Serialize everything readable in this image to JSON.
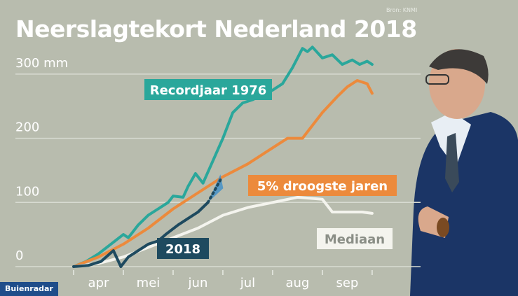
{
  "title": "Neerslagtekort Nederland 2018",
  "source": "Bron: KNMI",
  "brand": "Buienradar",
  "colors": {
    "background": "#b8bcae",
    "record1976": "#2aa79b",
    "droogste5": "#ec8a3c",
    "mediaan": "#f4f4ee",
    "y2018": "#1e4a5f",
    "grid": "#d8dbd2"
  },
  "chart_data": {
    "type": "line",
    "x_unit": "maand",
    "xlim": [
      0,
      6.1
    ],
    "ylim": [
      0,
      350
    ],
    "y_ticks": [
      0,
      100,
      200,
      300
    ],
    "y_tick_labels": [
      "0",
      "100",
      "200",
      "300 mm"
    ],
    "x_ticks": [
      0.5,
      1.5,
      2.5,
      3.5,
      4.5,
      5.5
    ],
    "x_tick_labels": [
      "apr",
      "mei",
      "jun",
      "jul",
      "aug",
      "sep"
    ],
    "grid": true,
    "series": [
      {
        "name": "Recordjaar 1976",
        "color": "#2aa79b",
        "x": [
          0,
          0.25,
          0.5,
          0.75,
          1.0,
          1.1,
          1.3,
          1.5,
          1.6,
          1.9,
          2.0,
          2.2,
          2.3,
          2.45,
          2.6,
          2.8,
          3.0,
          3.2,
          3.4,
          3.6,
          3.8,
          4.0,
          4.2,
          4.4,
          4.5,
          4.6,
          4.7,
          4.8,
          5.0,
          5.2,
          5.4,
          5.6,
          5.75,
          5.9,
          6.0
        ],
        "y": [
          0,
          8,
          20,
          35,
          50,
          45,
          65,
          80,
          85,
          100,
          110,
          108,
          125,
          145,
          130,
          165,
          200,
          240,
          255,
          260,
          268,
          275,
          285,
          310,
          325,
          340,
          335,
          342,
          325,
          330,
          315,
          322,
          315,
          320,
          315
        ]
      },
      {
        "name": "5% droogste jaren",
        "color": "#ec8a3c",
        "x": [
          0,
          0.5,
          1.0,
          1.5,
          2.0,
          2.5,
          3.0,
          3.5,
          4.0,
          4.3,
          4.6,
          5.0,
          5.3,
          5.5,
          5.7,
          5.9,
          6.0
        ],
        "y": [
          0,
          15,
          35,
          60,
          90,
          115,
          140,
          160,
          185,
          200,
          200,
          240,
          265,
          280,
          290,
          285,
          270
        ]
      },
      {
        "name": "Mediaan",
        "color": "#f4f4ee",
        "x": [
          0,
          0.5,
          1.0,
          1.5,
          2.0,
          2.5,
          3.0,
          3.5,
          4.0,
          4.5,
          5.0,
          5.2,
          5.4,
          5.8,
          6.0
        ],
        "y": [
          0,
          5,
          15,
          30,
          45,
          60,
          80,
          92,
          100,
          108,
          105,
          85,
          85,
          85,
          83
        ]
      },
      {
        "name": "2018",
        "color": "#1e4a5f",
        "x": [
          0,
          0.3,
          0.55,
          0.8,
          0.95,
          1.1,
          1.3,
          1.5,
          1.7,
          1.85,
          2.1,
          2.3,
          2.5,
          2.7
        ],
        "y": [
          0,
          2,
          8,
          25,
          0,
          15,
          25,
          35,
          40,
          50,
          65,
          75,
          85,
          100
        ]
      }
    ],
    "projection": {
      "series": "2018",
      "x": [
        2.7,
        2.95
      ],
      "y": [
        100,
        135
      ]
    },
    "labels": [
      {
        "text": "Recordjaar 1976",
        "series": "Recordjaar 1976"
      },
      {
        "text": "5% droogste jaren",
        "series": "5% droogste jaren"
      },
      {
        "text": "Mediaan",
        "series": "Mediaan"
      },
      {
        "text": "2018",
        "series": "2018"
      }
    ]
  }
}
